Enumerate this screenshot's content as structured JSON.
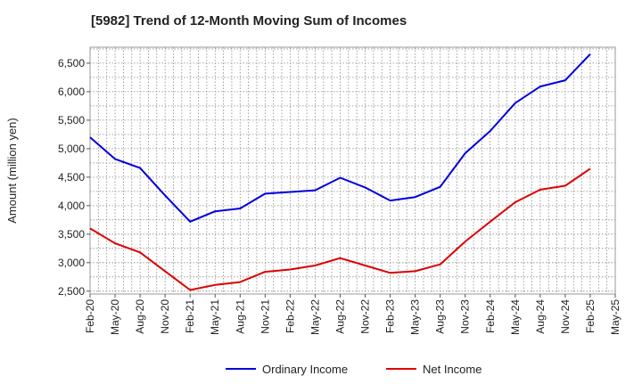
{
  "chart_data": {
    "type": "line",
    "title": "[5982]  Trend of 12-Month Moving Sum of Incomes",
    "xlabel": "",
    "ylabel": "Amount (million yen)",
    "ylim": [
      2450,
      6780
    ],
    "yticks": [
      2500,
      3000,
      3500,
      4000,
      4500,
      5000,
      5500,
      6000,
      6500
    ],
    "ytick_labels": [
      "2,500",
      "3,000",
      "3,500",
      "4,000",
      "4,500",
      "5,000",
      "5,500",
      "6,000",
      "6,500"
    ],
    "categories": [
      "Feb-20",
      "May-20",
      "Aug-20",
      "Nov-20",
      "Feb-21",
      "May-21",
      "Aug-21",
      "Nov-21",
      "Feb-22",
      "May-22",
      "Aug-22",
      "Nov-22",
      "Feb-23",
      "May-23",
      "Aug-23",
      "Nov-23",
      "Feb-24",
      "May-24",
      "Aug-24",
      "Nov-24",
      "Feb-25",
      "May-25"
    ],
    "grid": true,
    "legend_position": "bottom",
    "series": [
      {
        "name": "Ordinary Income",
        "color": "#0000dd",
        "values": [
          5200,
          4820,
          4660,
          4180,
          3720,
          3900,
          3950,
          4210,
          4240,
          4270,
          4490,
          4320,
          4090,
          4150,
          4330,
          4920,
          5310,
          5800,
          6090,
          6200,
          6660,
          null
        ]
      },
      {
        "name": "Net Income",
        "color": "#dd0000",
        "values": [
          3600,
          3340,
          3180,
          2850,
          2520,
          2610,
          2660,
          2840,
          2880,
          2950,
          3080,
          2950,
          2820,
          2850,
          2970,
          3370,
          3720,
          4060,
          4280,
          4350,
          4650,
          null
        ]
      }
    ]
  }
}
